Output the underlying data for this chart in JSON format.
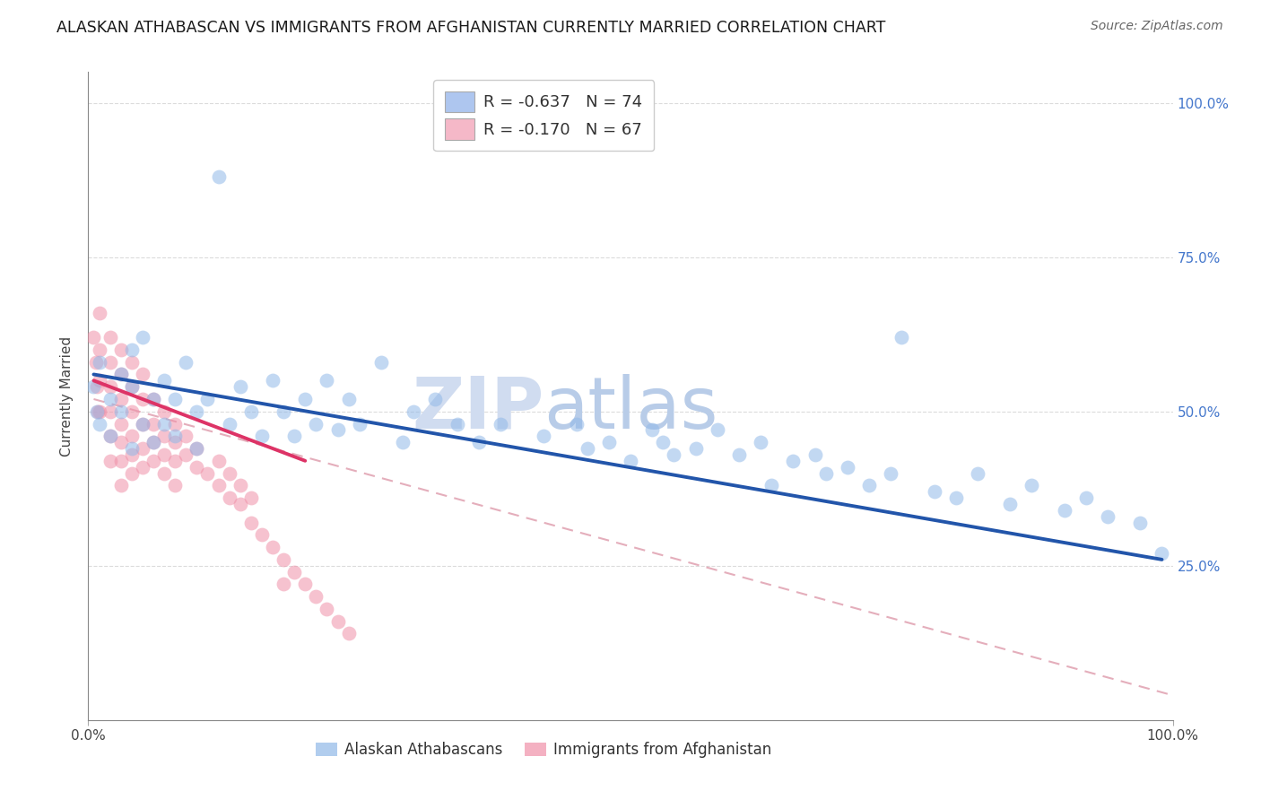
{
  "title": "ALASKAN ATHABASCAN VS IMMIGRANTS FROM AFGHANISTAN CURRENTLY MARRIED CORRELATION CHART",
  "source": "Source: ZipAtlas.com",
  "ylabel": "Currently Married",
  "xlim": [
    0.0,
    1.0
  ],
  "ylim": [
    0.0,
    1.05
  ],
  "xtick_vals": [
    0.0,
    1.0
  ],
  "xtick_labels": [
    "0.0%",
    "100.0%"
  ],
  "ytick_vals_right": [
    0.25,
    0.5,
    0.75,
    1.0
  ],
  "ytick_labels_right": [
    "25.0%",
    "50.0%",
    "75.0%",
    "100.0%"
  ],
  "legend1_label": "R = -0.637   N = 74",
  "legend2_label": "R = -0.170   N = 67",
  "legend1_color": "#aec6ef",
  "legend2_color": "#f5b8c8",
  "blue_dot_color": "#91b8e8",
  "pink_dot_color": "#f090a8",
  "blue_line_color": "#2255aa",
  "pink_line_color": "#dd3366",
  "dashed_line_color": "#e0a0b0",
  "watermark_zip_color": "#d0dcf0",
  "watermark_atlas_color": "#b8cce8",
  "background_color": "#ffffff",
  "title_fontsize": 12.5,
  "source_fontsize": 10,
  "legend_text_color": "#333333",
  "legend_value_color": "#3355cc",
  "bottom_legend_labels": [
    "Alaskan Athabascans",
    "Immigrants from Afghanistan"
  ],
  "blue_scatter_x": [
    0.005,
    0.008,
    0.01,
    0.01,
    0.02,
    0.02,
    0.03,
    0.03,
    0.04,
    0.04,
    0.04,
    0.05,
    0.05,
    0.06,
    0.06,
    0.07,
    0.07,
    0.08,
    0.08,
    0.09,
    0.1,
    0.1,
    0.11,
    0.12,
    0.13,
    0.14,
    0.15,
    0.16,
    0.17,
    0.18,
    0.19,
    0.2,
    0.21,
    0.22,
    0.23,
    0.24,
    0.25,
    0.27,
    0.29,
    0.3,
    0.32,
    0.34,
    0.36,
    0.38,
    0.42,
    0.45,
    0.46,
    0.48,
    0.5,
    0.52,
    0.53,
    0.54,
    0.56,
    0.58,
    0.6,
    0.62,
    0.63,
    0.65,
    0.67,
    0.68,
    0.7,
    0.72,
    0.74,
    0.75,
    0.78,
    0.8,
    0.82,
    0.85,
    0.87,
    0.9,
    0.92,
    0.94,
    0.97,
    0.99
  ],
  "blue_scatter_y": [
    0.54,
    0.5,
    0.58,
    0.48,
    0.52,
    0.46,
    0.56,
    0.5,
    0.6,
    0.54,
    0.44,
    0.62,
    0.48,
    0.52,
    0.45,
    0.55,
    0.48,
    0.52,
    0.46,
    0.58,
    0.5,
    0.44,
    0.52,
    0.88,
    0.48,
    0.54,
    0.5,
    0.46,
    0.55,
    0.5,
    0.46,
    0.52,
    0.48,
    0.55,
    0.47,
    0.52,
    0.48,
    0.58,
    0.45,
    0.5,
    0.52,
    0.48,
    0.45,
    0.48,
    0.46,
    0.48,
    0.44,
    0.45,
    0.42,
    0.47,
    0.45,
    0.43,
    0.44,
    0.47,
    0.43,
    0.45,
    0.38,
    0.42,
    0.43,
    0.4,
    0.41,
    0.38,
    0.4,
    0.62,
    0.37,
    0.36,
    0.4,
    0.35,
    0.38,
    0.34,
    0.36,
    0.33,
    0.32,
    0.27
  ],
  "pink_scatter_x": [
    0.005,
    0.007,
    0.008,
    0.009,
    0.01,
    0.01,
    0.01,
    0.01,
    0.02,
    0.02,
    0.02,
    0.02,
    0.02,
    0.02,
    0.03,
    0.03,
    0.03,
    0.03,
    0.03,
    0.03,
    0.03,
    0.04,
    0.04,
    0.04,
    0.04,
    0.04,
    0.04,
    0.05,
    0.05,
    0.05,
    0.05,
    0.05,
    0.06,
    0.06,
    0.06,
    0.06,
    0.07,
    0.07,
    0.07,
    0.07,
    0.08,
    0.08,
    0.08,
    0.08,
    0.09,
    0.09,
    0.1,
    0.1,
    0.11,
    0.12,
    0.12,
    0.13,
    0.13,
    0.14,
    0.14,
    0.15,
    0.15,
    0.16,
    0.17,
    0.18,
    0.18,
    0.19,
    0.2,
    0.21,
    0.22,
    0.23,
    0.24
  ],
  "pink_scatter_y": [
    0.62,
    0.58,
    0.54,
    0.5,
    0.66,
    0.6,
    0.55,
    0.5,
    0.62,
    0.58,
    0.54,
    0.5,
    0.46,
    0.42,
    0.6,
    0.56,
    0.52,
    0.48,
    0.45,
    0.42,
    0.38,
    0.58,
    0.54,
    0.5,
    0.46,
    0.43,
    0.4,
    0.56,
    0.52,
    0.48,
    0.44,
    0.41,
    0.52,
    0.48,
    0.45,
    0.42,
    0.5,
    0.46,
    0.43,
    0.4,
    0.48,
    0.45,
    0.42,
    0.38,
    0.46,
    0.43,
    0.44,
    0.41,
    0.4,
    0.42,
    0.38,
    0.4,
    0.36,
    0.38,
    0.35,
    0.36,
    0.32,
    0.3,
    0.28,
    0.26,
    0.22,
    0.24,
    0.22,
    0.2,
    0.18,
    0.16,
    0.14
  ],
  "blue_line_x": [
    0.005,
    0.99
  ],
  "blue_line_y": [
    0.56,
    0.26
  ],
  "pink_line_x": [
    0.005,
    0.2
  ],
  "pink_line_y": [
    0.55,
    0.42
  ],
  "dash_line_x": [
    0.005,
    1.0
  ],
  "dash_line_y": [
    0.52,
    0.04
  ]
}
